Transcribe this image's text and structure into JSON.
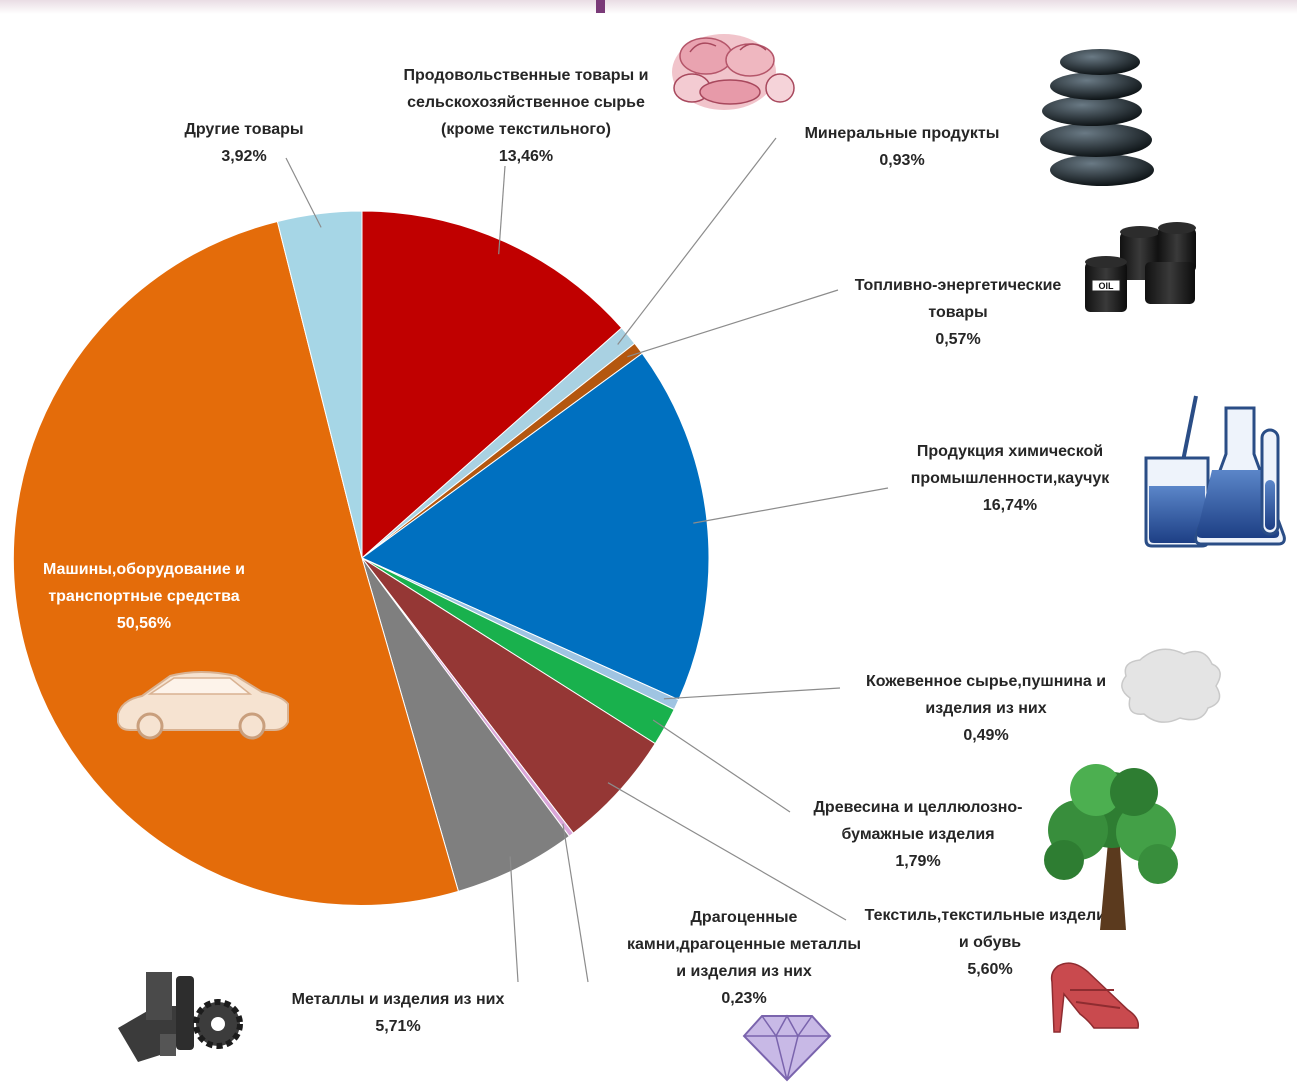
{
  "chart_data": {
    "type": "pie",
    "start": "12 o'clock, clockwise",
    "slices": [
      {
        "label": "Продовольственные товары и сельскохозяйственное сырье (кроме текстильного)",
        "value": 13.46,
        "value_label": "13,46%",
        "color": "#c00000",
        "lines": [
          "Продовольственные товары и",
          "сельскохозяйственное сырье",
          "(кроме текстильного)"
        ],
        "icon": "meat-icon"
      },
      {
        "label": "Минеральные продукты",
        "value": 0.93,
        "value_label": "0,93%",
        "color": "#a9d1e2",
        "lines": [
          "Минеральные продукты"
        ],
        "icon": "stones-icon"
      },
      {
        "label": "Топливно-энергетические товары",
        "value": 0.57,
        "value_label": "0,57%",
        "color": "#b4570f",
        "lines": [
          "Топливно-энергетические",
          "товары"
        ],
        "icon": "oil-barrels-icon"
      },
      {
        "label": "Продукция химической промышленности,каучук",
        "value": 16.74,
        "value_label": "16,74%",
        "color": "#0070c0",
        "lines": [
          "Продукция химической",
          "промышленности,каучук"
        ],
        "icon": "lab-flasks-icon"
      },
      {
        "label": "Кожевенное сырье,пушнина и изделия из них",
        "value": 0.49,
        "value_label": "0,49%",
        "color": "#9fc4e2",
        "lines": [
          "Кожевенное сырье,пушнина и",
          "изделия из них"
        ],
        "icon": "hide-icon"
      },
      {
        "label": "Древесина и целлюлозно-бумажные изделия",
        "value": 1.79,
        "value_label": "1,79%",
        "color": "#19b14d",
        "lines": [
          "Древесина и целлюлозно-",
          "бумажные изделия"
        ],
        "icon": "tree-icon"
      },
      {
        "label": "Текстиль,текстильные изделия и обувь",
        "value": 5.6,
        "value_label": "5,60%",
        "color": "#953735",
        "lines": [
          "Текстиль,текстильные изделия",
          "и обувь"
        ],
        "icon": "shoe-icon"
      },
      {
        "label": "Драгоценные камни,драгоценные металлы и изделия из них",
        "value": 0.23,
        "value_label": "0,23%",
        "color": "#d9a6d9",
        "lines": [
          "Драгоценные",
          "камни,драгоценные металлы",
          "и изделия из них"
        ],
        "icon": "gem-icon"
      },
      {
        "label": "Металлы и изделия из них",
        "value": 5.71,
        "value_label": "5,71%",
        "color": "#7f7f7f",
        "lines": [
          "Металлы и изделия из них"
        ],
        "icon": "metal-parts-icon"
      },
      {
        "label": "Машины,оборудование и транспортные средства",
        "value": 50.56,
        "value_label": "50,56%",
        "color": "#e46c0a",
        "lines": [
          "Машины,оборудование и",
          "транспортные средства"
        ],
        "icon": "car-icon"
      },
      {
        "label": "Другие товары",
        "value": 3.92,
        "value_label": "3,92%",
        "color": "#a6d6e6",
        "lines": [
          "Другие товары"
        ],
        "icon": null
      }
    ]
  }
}
